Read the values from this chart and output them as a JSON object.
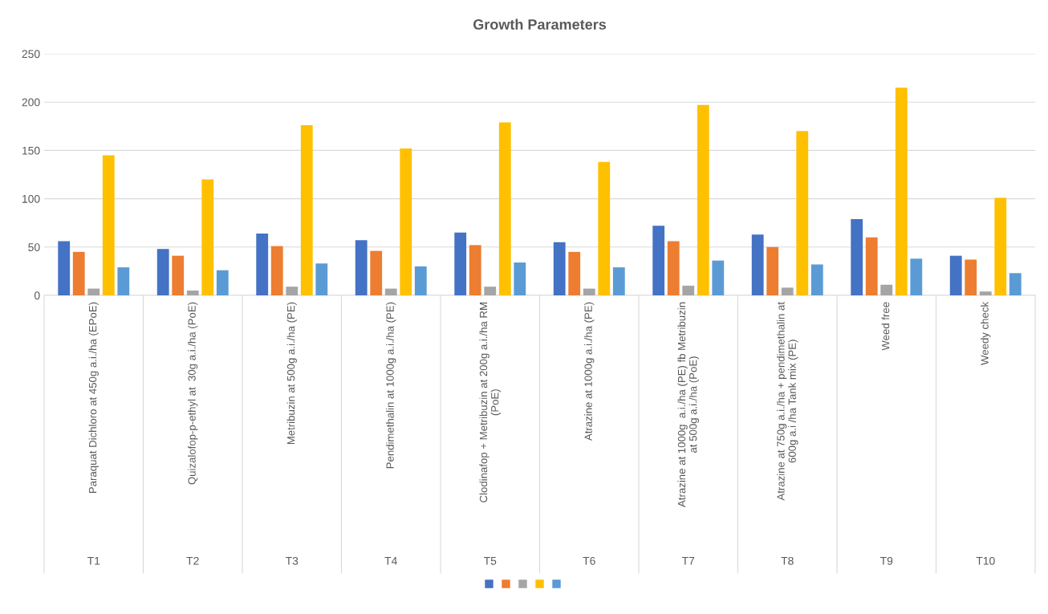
{
  "chart_data": {
    "type": "bar",
    "title": "Growth Parameters",
    "categories": [
      "Paraquat Dichloro at 450g a.i./ha (EPoE)",
      "Quizalofop-p-ethyl at  30g a.i./ha (PoE)",
      "Metribuzin at 500g a.i./ha (PE)",
      "Pendimethalin at 1000g a.i./ha (PE)",
      "Clodinafop + Metribuzin at 200g a.i./ha RM\n(PoE)",
      "Atrazine at 1000g a.i./ha (PE)",
      "Atrazine at 1000g  a.i./ha (PE) fb Metribuzin\nat 500g a.i./ha (PoE)",
      "Atrazine at 750g a.i./ha + pendimethalin at\n600g a.i /ha Tank mix (PE)",
      "Weed free",
      "Weedy check"
    ],
    "annotations": [
      "T1",
      "T2",
      "T3",
      "T4",
      "T5",
      "T6",
      "T7",
      "T8",
      "T9",
      "T10"
    ],
    "series": [
      {
        "color": "#4472c4",
        "values": [
          56,
          48,
          64,
          57,
          65,
          55,
          72,
          63,
          79,
          41
        ]
      },
      {
        "color": "#ed7d31",
        "values": [
          45,
          41,
          51,
          46,
          52,
          45,
          56,
          50,
          60,
          37
        ]
      },
      {
        "color": "#a5a5a5",
        "values": [
          7,
          5,
          9,
          7,
          9,
          7,
          10,
          8,
          11,
          4
        ]
      },
      {
        "color": "#ffc000",
        "values": [
          145,
          120,
          176,
          152,
          179,
          138,
          197,
          170,
          215,
          101
        ]
      },
      {
        "color": "#5b9bd5",
        "values": [
          29,
          26,
          33,
          30,
          34,
          29,
          36,
          32,
          38,
          23
        ]
      }
    ],
    "ylim": [
      0,
      250
    ],
    "yticks": [
      0,
      50,
      100,
      150,
      200,
      250
    ],
    "grid": "y"
  }
}
